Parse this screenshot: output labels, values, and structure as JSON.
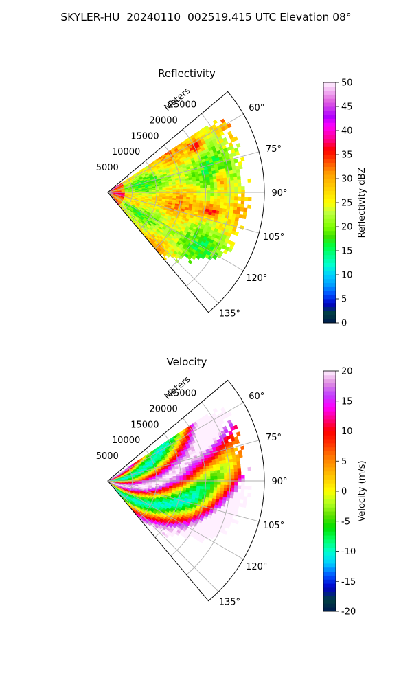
{
  "page": {
    "title": "SKYLER-HU  20240110  002519.415 UTC Elevation 08°"
  },
  "chart_data": [
    {
      "type": "polar-sector",
      "title": "Reflectivity",
      "radial_label": "Meters",
      "radial_ticks": [
        5000,
        10000,
        15000,
        20000,
        25000
      ],
      "radial_range": [
        0,
        32000
      ],
      "angle_range_deg": [
        50,
        140
      ],
      "angle_ticks_deg": [
        60,
        75,
        90,
        105,
        120,
        135
      ],
      "angle_tick_labels": [
        "60°",
        "75°",
        "90°",
        "105°",
        "120°",
        "135°"
      ],
      "grid": true,
      "colorbar": {
        "label": "Reflectivity dBZ",
        "range": [
          0,
          50
        ],
        "ticks": [
          0,
          5,
          10,
          15,
          20,
          25,
          30,
          35,
          40,
          45,
          50
        ],
        "colormap": [
          {
            "v": 0,
            "c": "#001a50"
          },
          {
            "v": 2,
            "c": "#004040"
          },
          {
            "v": 4,
            "c": "#0000c8"
          },
          {
            "v": 6,
            "c": "#0050ff"
          },
          {
            "v": 8,
            "c": "#00a0ff"
          },
          {
            "v": 10,
            "c": "#00d0ff"
          },
          {
            "v": 12,
            "c": "#00ffd0"
          },
          {
            "v": 14,
            "c": "#00ff90"
          },
          {
            "v": 16,
            "c": "#00ff40"
          },
          {
            "v": 18,
            "c": "#40e000"
          },
          {
            "v": 20,
            "c": "#80ff00"
          },
          {
            "v": 23,
            "c": "#c0ff40"
          },
          {
            "v": 25,
            "c": "#ffff00"
          },
          {
            "v": 28,
            "c": "#ffd000"
          },
          {
            "v": 31,
            "c": "#ffa000"
          },
          {
            "v": 33,
            "c": "#ff6000"
          },
          {
            "v": 36,
            "c": "#ff0000"
          },
          {
            "v": 38,
            "c": "#ff0080"
          },
          {
            "v": 41,
            "c": "#ff00ff"
          },
          {
            "v": 43,
            "c": "#b000ff"
          },
          {
            "v": 46,
            "c": "#e060e0"
          },
          {
            "v": 50,
            "c": "#fff0ff"
          }
        ]
      },
      "field": "reflectivity"
    },
    {
      "type": "polar-sector",
      "title": "Velocity",
      "radial_label": "Meters",
      "radial_ticks": [
        5000,
        10000,
        15000,
        20000,
        25000
      ],
      "radial_range": [
        0,
        32000
      ],
      "angle_range_deg": [
        50,
        140
      ],
      "angle_ticks_deg": [
        60,
        75,
        90,
        105,
        120,
        135
      ],
      "angle_tick_labels": [
        "60°",
        "75°",
        "90°",
        "105°",
        "120°",
        "135°"
      ],
      "grid": true,
      "colorbar": {
        "label": "Velocity (m/s)",
        "range": [
          -20,
          20
        ],
        "ticks": [
          -20,
          -15,
          -10,
          -5,
          0,
          5,
          10,
          15,
          20
        ],
        "colormap": [
          {
            "v": -20,
            "c": "#001a50"
          },
          {
            "v": -18,
            "c": "#004040"
          },
          {
            "v": -16,
            "c": "#0000c8"
          },
          {
            "v": -14,
            "c": "#0050ff"
          },
          {
            "v": -12,
            "c": "#00d0ff"
          },
          {
            "v": -10,
            "c": "#00ffd0"
          },
          {
            "v": -8,
            "c": "#00ff60"
          },
          {
            "v": -6,
            "c": "#00e000"
          },
          {
            "v": -4,
            "c": "#60e000"
          },
          {
            "v": -2,
            "c": "#b0ff20"
          },
          {
            "v": 0,
            "c": "#ffff00"
          },
          {
            "v": 2,
            "c": "#ffd000"
          },
          {
            "v": 4,
            "c": "#ffa000"
          },
          {
            "v": 6,
            "c": "#ff7000"
          },
          {
            "v": 8,
            "c": "#ff3000"
          },
          {
            "v": 10,
            "c": "#ff0000"
          },
          {
            "v": 12,
            "c": "#ff0080"
          },
          {
            "v": 14,
            "c": "#ff00ff"
          },
          {
            "v": 16,
            "c": "#c040ff"
          },
          {
            "v": 18,
            "c": "#e090e0"
          },
          {
            "v": 20,
            "c": "#fff0ff"
          }
        ]
      },
      "field": "velocity"
    }
  ]
}
